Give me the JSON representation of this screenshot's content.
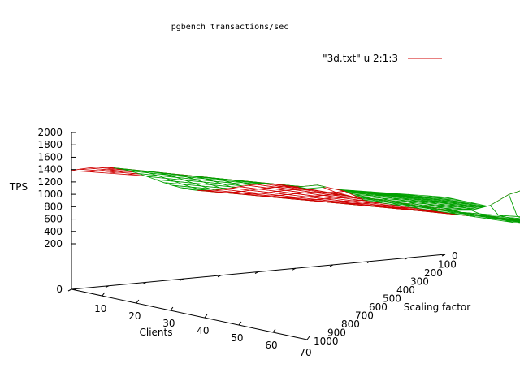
{
  "chart_data": {
    "type": "surface3d",
    "title": "pgbench transactions/sec",
    "legend": {
      "label": "\"3d.txt\" u 2:1:3",
      "placement": "top-right"
    },
    "xlabel": "Clients",
    "ylabel": "Scaling factor",
    "zlabel": "TPS",
    "x_ticks": [
      "10",
      "20",
      "30",
      "40",
      "50",
      "60",
      "70"
    ],
    "y_ticks": [
      "0",
      "100",
      "200",
      "300",
      "400",
      "500",
      "600",
      "700",
      "800",
      "900",
      "1000"
    ],
    "z_ticks": [
      "0",
      "200",
      "400",
      "600",
      "800",
      "1000",
      "1200",
      "1400",
      "1600",
      "1800",
      "2000"
    ],
    "xlim": [
      1,
      70
    ],
    "ylim": [
      0,
      1000
    ],
    "zlim": [
      0,
      2000
    ],
    "grid": {
      "x_count": 29,
      "y_count": 21,
      "x_step": 2.464,
      "y_step": 50
    },
    "surface_description": "Ridge of ~1300-2000 TPS at low scaling factors declining to ~200-600 TPS at high scaling factors; spikes near clients 30 and 70 at high scaling factor.",
    "colors": {
      "top": "#00a000",
      "bottom": "#d00000",
      "axes": "#000000"
    }
  }
}
